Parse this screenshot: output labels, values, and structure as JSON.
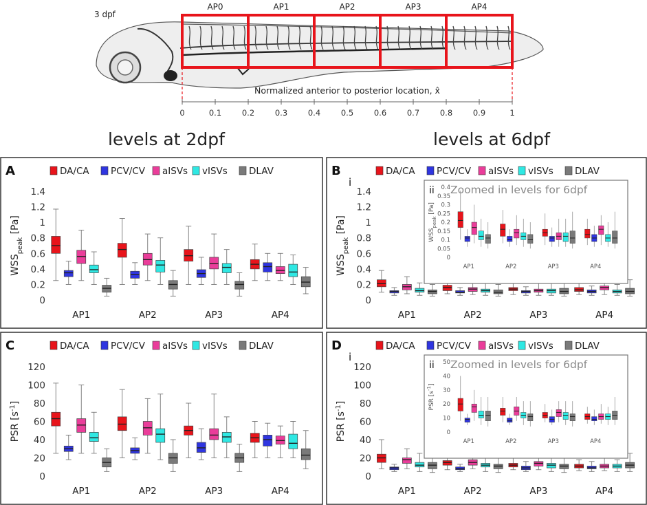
{
  "header": {
    "stage_label": "3 dpf",
    "segments": [
      "AP0",
      "AP1",
      "AP2",
      "AP3",
      "AP4"
    ],
    "axis_label": "Normalized anterior to posterior location, x̂",
    "ticks": [
      "0",
      "0.1",
      "0.2",
      "0.3",
      "0.4",
      "0.5",
      "0.6",
      "0.7",
      "0.8",
      "0.9",
      "1"
    ]
  },
  "section_titles": {
    "left": "levels at 2dpf",
    "right": "levels at 6dpf"
  },
  "legend": [
    "DA/CA",
    "PCV/CV",
    "aISVs",
    "vISVs",
    "DLAV"
  ],
  "colors": {
    "DA/CA": "#e8141b",
    "PCV/CV": "#2f35e0",
    "aISVs": "#ea3d9a",
    "vISVs": "#2fe8e3",
    "DLAV": "#7a7a7a",
    "highlight": "#e8141b",
    "frame": "#333333"
  },
  "inset_title": "Zoomed in levels for 6dpf",
  "chart_data": [
    {
      "panel": "A",
      "sub_label": "",
      "type": "box",
      "title": "levels at 2dpf",
      "ylabel": "WSS_peak [Pa]",
      "ylabel_main": "WSS",
      "ylabel_sub": "peak",
      "ylabel_unit": " [Pa]",
      "ylim": [
        0,
        1.4
      ],
      "yticks": [
        "0",
        "0.2",
        "0.4",
        "0.6",
        "0.8",
        "1",
        "1.2",
        "1.4"
      ],
      "categories": [
        "AP1",
        "AP2",
        "AP3",
        "AP4"
      ],
      "series": [
        {
          "name": "DA/CA",
          "boxes": [
            [
              0.25,
              0.6,
              0.7,
              0.82,
              1.17
            ],
            [
              0.2,
              0.55,
              0.65,
              0.73,
              1.05
            ],
            [
              0.2,
              0.5,
              0.57,
              0.65,
              0.95
            ],
            [
              0.25,
              0.4,
              0.46,
              0.52,
              0.72
            ]
          ]
        },
        {
          "name": "PCV/CV",
          "boxes": [
            [
              0.2,
              0.3,
              0.35,
              0.38,
              0.5
            ],
            [
              0.2,
              0.28,
              0.33,
              0.37,
              0.48
            ],
            [
              0.2,
              0.29,
              0.34,
              0.39,
              0.55
            ],
            [
              0.25,
              0.36,
              0.43,
              0.48,
              0.6
            ]
          ]
        },
        {
          "name": "aISVs",
          "boxes": [
            [
              0.25,
              0.47,
              0.56,
              0.64,
              0.9
            ],
            [
              0.25,
              0.45,
              0.52,
              0.6,
              0.85
            ],
            [
              0.2,
              0.4,
              0.47,
              0.55,
              0.85
            ],
            [
              0.25,
              0.34,
              0.38,
              0.43,
              0.6
            ]
          ]
        },
        {
          "name": "vISVs",
          "boxes": [
            [
              0.2,
              0.35,
              0.39,
              0.45,
              0.62
            ],
            [
              0.2,
              0.36,
              0.45,
              0.51,
              0.8
            ],
            [
              0.2,
              0.35,
              0.42,
              0.47,
              0.65
            ],
            [
              0.2,
              0.3,
              0.36,
              0.46,
              0.58
            ]
          ]
        },
        {
          "name": "DLAV",
          "boxes": [
            [
              0.05,
              0.1,
              0.15,
              0.19,
              0.28
            ],
            [
              0.05,
              0.14,
              0.2,
              0.25,
              0.38
            ],
            [
              0.05,
              0.14,
              0.2,
              0.24,
              0.35
            ],
            [
              0.08,
              0.17,
              0.23,
              0.3,
              0.42
            ]
          ]
        }
      ]
    },
    {
      "panel": "B",
      "sub_label": "i",
      "type": "box",
      "title": "levels at 6dpf",
      "ylabel": "WSS_peak [Pa]",
      "ylabel_main": "WSS",
      "ylabel_sub": "peak",
      "ylabel_unit": " [Pa]",
      "ylim": [
        0,
        1.4
      ],
      "yticks": [
        "0",
        "0.2",
        "0.4",
        "0.6",
        "0.8",
        "1",
        "1.2",
        "1.4"
      ],
      "categories": [
        "AP1",
        "AP2",
        "AP3",
        "AP4"
      ],
      "series": [
        {
          "name": "DA/CA",
          "boxes": [
            [
              0.1,
              0.17,
              0.21,
              0.26,
              0.38
            ],
            [
              0.08,
              0.12,
              0.16,
              0.19,
              0.27
            ],
            [
              0.07,
              0.12,
              0.14,
              0.16,
              0.25
            ],
            [
              0.07,
              0.11,
              0.13,
              0.16,
              0.22
            ]
          ]
        },
        {
          "name": "PCV/CV",
          "boxes": [
            [
              0.06,
              0.09,
              0.11,
              0.12,
              0.16
            ],
            [
              0.06,
              0.09,
              0.1,
              0.12,
              0.16
            ],
            [
              0.06,
              0.09,
              0.11,
              0.12,
              0.17
            ],
            [
              0.06,
              0.09,
              0.11,
              0.13,
              0.18
            ]
          ]
        },
        {
          "name": "aISVs",
          "boxes": [
            [
              0.08,
              0.13,
              0.17,
              0.2,
              0.3
            ],
            [
              0.07,
              0.11,
              0.14,
              0.16,
              0.24
            ],
            [
              0.06,
              0.1,
              0.12,
              0.14,
              0.22
            ],
            [
              0.07,
              0.13,
              0.16,
              0.18,
              0.24
            ]
          ]
        },
        {
          "name": "vISVs",
          "boxes": [
            [
              0.06,
              0.1,
              0.12,
              0.15,
              0.22
            ],
            [
              0.06,
              0.1,
              0.12,
              0.14,
              0.22
            ],
            [
              0.06,
              0.09,
              0.12,
              0.14,
              0.22
            ],
            [
              0.06,
              0.09,
              0.11,
              0.13,
              0.2
            ]
          ]
        },
        {
          "name": "DLAV",
          "boxes": [
            [
              0.05,
              0.08,
              0.11,
              0.13,
              0.2
            ],
            [
              0.05,
              0.08,
              0.1,
              0.13,
              0.2
            ],
            [
              0.05,
              0.08,
              0.11,
              0.15,
              0.26
            ],
            [
              0.05,
              0.08,
              0.11,
              0.15,
              0.26
            ]
          ]
        }
      ],
      "inset": {
        "sub_label": "ii",
        "ylabel_main": "WSS",
        "ylabel_sub": "peak",
        "ylabel_unit": " [Pa]",
        "ylim": [
          0,
          0.4
        ],
        "yticks": [
          "0",
          "0.05",
          "0.1",
          "0.15",
          "0.2",
          "0.25",
          "0.3",
          "0.35",
          "0.4"
        ]
      }
    },
    {
      "panel": "C",
      "sub_label": "",
      "type": "box",
      "title": "levels at 2dpf",
      "ylabel": "PSR [s^-1]",
      "ylabel_main": "PSR [s",
      "ylabel_sup": "-1",
      "ylabel_unit": "]",
      "ylim": [
        0,
        120
      ],
      "yticks": [
        "0",
        "20",
        "40",
        "60",
        "80",
        "100",
        "120"
      ],
      "categories": [
        "AP1",
        "AP2",
        "AP3",
        "AP4"
      ],
      "series": [
        {
          "name": "DA/CA",
          "boxes": [
            [
              25,
              55,
              63,
              70,
              102
            ],
            [
              20,
              50,
              57,
              65,
              95
            ],
            [
              20,
              45,
              50,
              55,
              80
            ],
            [
              20,
              37,
              42,
              47,
              60
            ]
          ]
        },
        {
          "name": "PCV/CV",
          "boxes": [
            [
              18,
              27,
              30,
              33,
              45
            ],
            [
              18,
              25,
              28,
              31,
              42
            ],
            [
              18,
              26,
              31,
              37,
              52
            ],
            [
              20,
              33,
              40,
              45,
              58
            ]
          ]
        },
        {
          "name": "aISVs",
          "boxes": [
            [
              25,
              48,
              56,
              63,
              100
            ],
            [
              25,
              45,
              53,
              60,
              85
            ],
            [
              20,
              40,
              45,
              52,
              90
            ],
            [
              20,
              35,
              39,
              44,
              55
            ]
          ]
        },
        {
          "name": "vISVs",
          "boxes": [
            [
              25,
              38,
              42,
              48,
              70
            ],
            [
              18,
              37,
              46,
              52,
              90
            ],
            [
              20,
              37,
              43,
              48,
              65
            ],
            [
              20,
              30,
              36,
              46,
              60
            ]
          ]
        },
        {
          "name": "DLAV",
          "boxes": [
            [
              5,
              10,
              15,
              20,
              30
            ],
            [
              5,
              14,
              20,
              25,
              40
            ],
            [
              5,
              15,
              20,
              25,
              35
            ],
            [
              8,
              18,
              23,
              30,
              50
            ]
          ]
        }
      ]
    },
    {
      "panel": "D",
      "sub_label": "i",
      "type": "box",
      "title": "levels at 6dpf",
      "ylabel": "PSR [s^-1]",
      "ylabel_main": "PSR [s",
      "ylabel_sup": "-1",
      "ylabel_unit": "]",
      "ylim": [
        0,
        120
      ],
      "yticks": [
        "0",
        "20",
        "40",
        "60",
        "80",
        "100",
        "120"
      ],
      "categories": [
        "AP1",
        "AP2",
        "AP3",
        "AP4"
      ],
      "series": [
        {
          "name": "DA/CA",
          "boxes": [
            [
              8,
              15,
              20,
              24,
              40
            ],
            [
              7,
              12,
              15,
              17,
              25
            ],
            [
              7,
              10,
              12,
              14,
              20
            ],
            [
              6,
              9,
              11,
              13,
              18
            ]
          ]
        },
        {
          "name": "PCV/CV",
          "boxes": [
            [
              5,
              7,
              9,
              10,
              13
            ],
            [
              5,
              7,
              8,
              10,
              13
            ],
            [
              5,
              7,
              9,
              11,
              16
            ],
            [
              5,
              8,
              9,
              11,
              16
            ]
          ]
        },
        {
          "name": "aISVs",
          "boxes": [
            [
              8,
              14,
              18,
              20,
              30
            ],
            [
              8,
              12,
              15,
              18,
              25
            ],
            [
              7,
              11,
              14,
              16,
              22
            ],
            [
              6,
              9,
              11,
              13,
              20
            ]
          ]
        },
        {
          "name": "vISVs",
          "boxes": [
            [
              5,
              10,
              12,
              15,
              25
            ],
            [
              5,
              10,
              12,
              14,
              22
            ],
            [
              5,
              9,
              12,
              14,
              22
            ],
            [
              5,
              9,
              11,
              13,
              18
            ]
          ]
        },
        {
          "name": "DLAV",
          "boxes": [
            [
              4,
              8,
              12,
              15,
              25
            ],
            [
              4,
              8,
              11,
              13,
              22
            ],
            [
              4,
              8,
              11,
              13,
              22
            ],
            [
              5,
              9,
              12,
              15,
              25
            ]
          ]
        }
      ],
      "inset": {
        "sub_label": "ii",
        "ylabel_main": "PSR [s",
        "ylabel_sup": "-1",
        "ylabel_unit": "]",
        "ylim": [
          0,
          50
        ],
        "yticks": [
          "0",
          "10",
          "20",
          "30",
          "40",
          "50"
        ]
      }
    }
  ]
}
